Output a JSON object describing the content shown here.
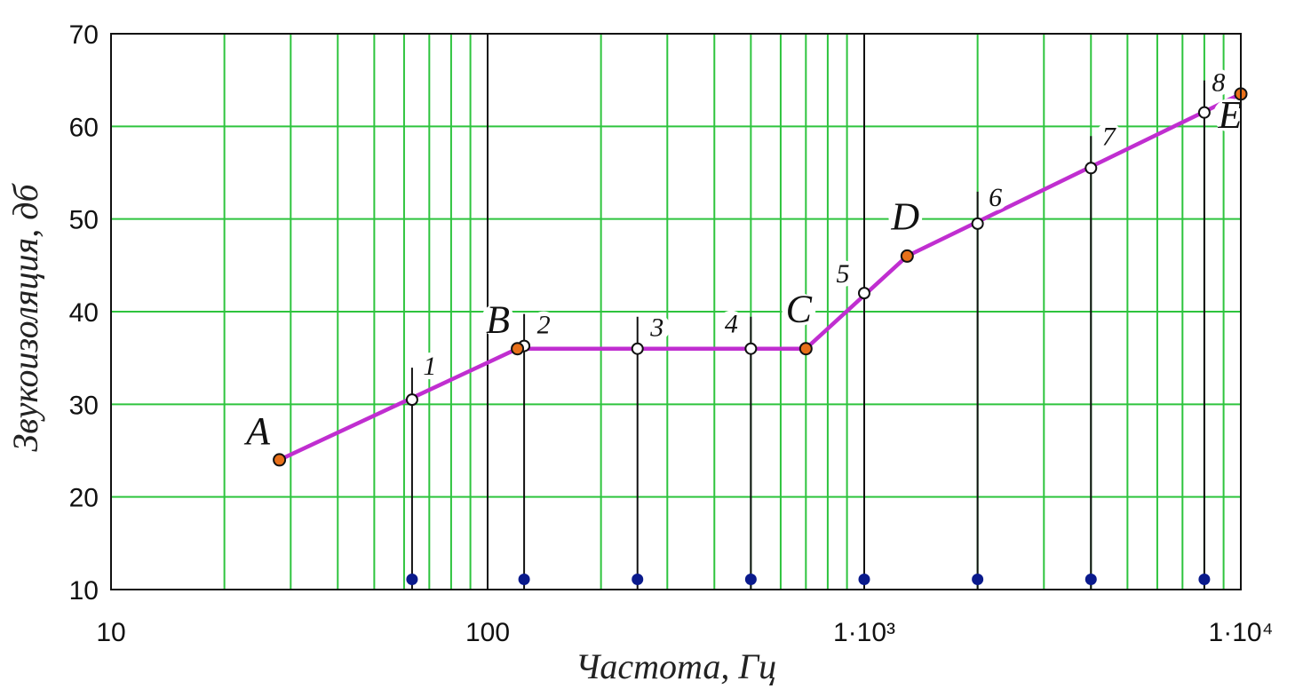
{
  "chart_data": {
    "type": "line",
    "x_scale": "log",
    "xlim": [
      10,
      10000
    ],
    "ylim": [
      10,
      70
    ],
    "grid": true,
    "xlabel": "Частота, Гц",
    "ylabel": "Звукоизоляция, дб",
    "x_tick_labels": [
      "10",
      "100",
      "1·10³",
      "1·10⁴"
    ],
    "y_ticks": [
      10,
      20,
      30,
      40,
      50,
      60,
      70
    ],
    "y_tick_labels": [
      "10",
      "20",
      "30",
      "40",
      "50",
      "60",
      "70"
    ],
    "colors": {
      "line": "#c02ed0",
      "key_point": "#e8701a",
      "grid": "#2ec43e",
      "marker": "#0a1a8c"
    },
    "curve": [
      {
        "label": "A",
        "x": 28,
        "y": 24
      },
      {
        "label": "B",
        "x": 120,
        "y": 36
      },
      {
        "label": "C",
        "x": 700,
        "y": 36
      },
      {
        "label": "D",
        "x": 1300,
        "y": 46
      },
      {
        "label": "E",
        "x": 10000,
        "y": 63.5
      }
    ],
    "markers": [
      {
        "label": "1",
        "x": 63,
        "y": 30.5
      },
      {
        "label": "2",
        "x": 125,
        "y": 36.3
      },
      {
        "label": "3",
        "x": 250,
        "y": 36
      },
      {
        "label": "4",
        "x": 500,
        "y": 36
      },
      {
        "label": "5",
        "x": 1000,
        "y": 42
      },
      {
        "label": "6",
        "x": 2000,
        "y": 49.5
      },
      {
        "label": "7",
        "x": 4000,
        "y": 55.5
      },
      {
        "label": "8",
        "x": 8000,
        "y": 61.5
      }
    ]
  }
}
